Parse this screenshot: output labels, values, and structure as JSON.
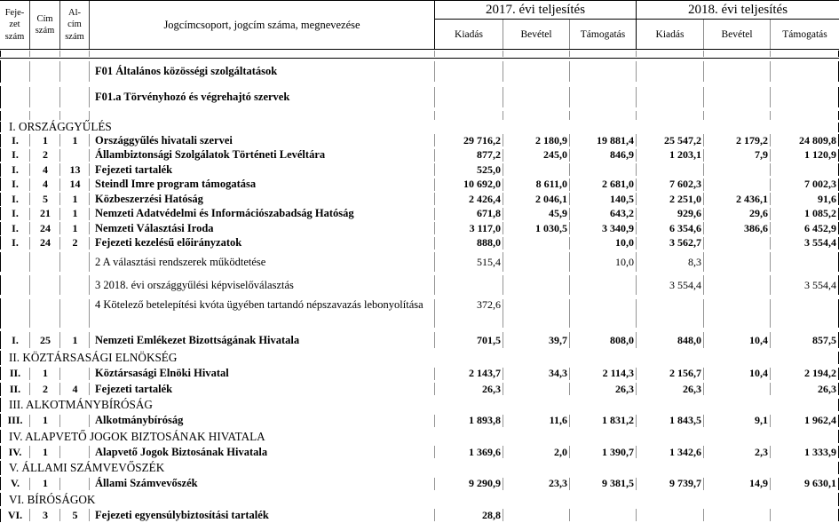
{
  "header": {
    "fejezet": "Feje-\nzet\nszám",
    "cim": "Cím\nszám",
    "alcim": "Al-\ncím\nszám",
    "megnevezes": "Jogcímcsoport, jogcím száma, megnevezése",
    "y2017": "2017. évi teljesítés",
    "y2018": "2018. évi teljesítés",
    "kiadas": "Kiadás",
    "bevetel": "Bevétel",
    "tamogatas": "Támogatás"
  },
  "rows": [
    {
      "type": "thin"
    },
    {
      "type": "func",
      "name": "F01 Általános közösségi szolgáltatások",
      "bold": true
    },
    {
      "type": "func",
      "name": "F01.a Törvényhozó és végrehajtó szervek",
      "bold": true
    },
    {
      "type": "spacer"
    },
    {
      "type": "section",
      "variant": "first",
      "name": "I. ORSZÁGGYŰLÉS"
    },
    {
      "type": "data",
      "variant": "first",
      "fejezet": "I.",
      "cim": "1",
      "alcim": "1",
      "name": "Országgyűlés hivatali szervei",
      "bold": true,
      "values": [
        "29 716,2",
        "2 180,9",
        "19 881,4",
        "25 547,2",
        "2 179,2",
        "24 809,8"
      ]
    },
    {
      "type": "data",
      "variant": "first",
      "fejezet": "I.",
      "cim": "2",
      "alcim": "",
      "name": "Állambiztonsági Szolgálatok Történeti Levéltára",
      "bold": true,
      "values": [
        "877,2",
        "245,0",
        "846,9",
        "1 203,1",
        "7,9",
        "1 120,9"
      ]
    },
    {
      "type": "data",
      "variant": "first",
      "fejezet": "I.",
      "cim": "4",
      "alcim": "13",
      "name": "Fejezeti tartalék",
      "bold": true,
      "values": [
        "525,0",
        "",
        "",
        "",
        "",
        ""
      ]
    },
    {
      "type": "data",
      "variant": "first",
      "fejezet": "I.",
      "cim": "4",
      "alcim": "14",
      "name": "Steindl Imre program támogatása",
      "bold": true,
      "values": [
        "10 692,0",
        "8 611,0",
        "2 681,0",
        "7 602,3",
        "",
        "7 002,3"
      ]
    },
    {
      "type": "data",
      "variant": "first",
      "fejezet": "I.",
      "cim": "5",
      "alcim": "1",
      "name": "Közbeszerzési Hatóság",
      "bold": true,
      "values": [
        "2 426,4",
        "2 046,1",
        "140,5",
        "2 251,0",
        "2 436,1",
        "91,6"
      ]
    },
    {
      "type": "data",
      "variant": "first",
      "fejezet": "I.",
      "cim": "21",
      "alcim": "1",
      "name": "Nemzeti Adatvédelmi és Információszabadság Hatóság",
      "bold": true,
      "values": [
        "671,8",
        "45,9",
        "643,2",
        "929,6",
        "29,6",
        "1 085,2"
      ]
    },
    {
      "type": "data",
      "variant": "first",
      "fejezet": "I.",
      "cim": "24",
      "alcim": "1",
      "name": "Nemzeti Választási Iroda",
      "bold": true,
      "values": [
        "3 117,0",
        "1 030,5",
        "3 340,9",
        "6 354,6",
        "386,6",
        "6 452,9"
      ]
    },
    {
      "type": "data",
      "variant": "first",
      "fejezet": "I.",
      "cim": "24",
      "alcim": "2",
      "name": "Fejezeti kezelésű előirányzatok",
      "bold": true,
      "values": [
        "888,0",
        "",
        "10,0",
        "3 562,7",
        "",
        "3 554,4"
      ]
    },
    {
      "type": "sub",
      "name": "2 A választási rendszerek működtetése",
      "values": [
        "515,4",
        "",
        "10,0",
        "8,3",
        "",
        ""
      ]
    },
    {
      "type": "sub",
      "name": "3 2018. évi országgyűlési képviselőválasztás",
      "values": [
        "",
        "",
        "",
        "3 554,4",
        "",
        "3 554,4"
      ]
    },
    {
      "type": "sub",
      "variant": "tall",
      "name": "4 Kötelező betelepítési kvóta ügyében tartandó népszavazás lebonyolítása",
      "values": [
        "372,6",
        "",
        "",
        "",
        "",
        ""
      ]
    },
    {
      "type": "data",
      "variant": "gap",
      "fejezet": "I.",
      "cim": "25",
      "alcim": "1",
      "name": "Nemzeti Emlékezet Bizottságának Hivatala",
      "bold": true,
      "values": [
        "701,5",
        "39,7",
        "808,0",
        "848,0",
        "10,4",
        "857,5"
      ]
    },
    {
      "type": "section",
      "name": "II. KÖZTÁRSASÁGI ELNÖKSÉG"
    },
    {
      "type": "data",
      "fejezet": "II.",
      "cim": "1",
      "alcim": "",
      "name": "Köztársasági Elnöki Hivatal",
      "bold": true,
      "values": [
        "2 143,7",
        "34,3",
        "2 114,3",
        "2 156,7",
        "10,4",
        "2 194,2"
      ]
    },
    {
      "type": "data",
      "fejezet": "II.",
      "cim": "2",
      "alcim": "4",
      "name": "Fejezeti tartalék",
      "bold": true,
      "values": [
        "26,3",
        "",
        "26,3",
        "26,3",
        "",
        "26,3"
      ]
    },
    {
      "type": "section",
      "name": "III. ALKOTMÁNYBÍRÓSÁG"
    },
    {
      "type": "data",
      "fejezet": "III.",
      "cim": "1",
      "alcim": "",
      "name": "Alkotmánybíróság",
      "bold": true,
      "values": [
        "1 893,8",
        "11,6",
        "1 831,2",
        "1 843,5",
        "9,1",
        "1 962,4"
      ]
    },
    {
      "type": "section",
      "name": "IV. ALAPVETŐ JOGOK BIZTOSÁNAK HIVATALA"
    },
    {
      "type": "data",
      "fejezet": "IV.",
      "cim": "1",
      "alcim": "",
      "name": "Alapvető Jogok Biztosának Hivatala",
      "bold": true,
      "values": [
        "1 369,6",
        "2,0",
        "1 390,7",
        "1 342,6",
        "2,3",
        "1 333,9"
      ]
    },
    {
      "type": "section",
      "name": "V. ÁLLAMI SZÁMVEVŐSZÉK"
    },
    {
      "type": "data",
      "fejezet": "V.",
      "cim": "1",
      "alcim": "",
      "name": "Állami Számvevőszék",
      "bold": true,
      "values": [
        "9 290,9",
        "23,3",
        "9 381,5",
        "9 739,7",
        "14,9",
        "9 630,1"
      ]
    },
    {
      "type": "section",
      "name": "VI. BÍRÓSÁGOK"
    },
    {
      "type": "data",
      "fejezet": "VI.",
      "cim": "3",
      "alcim": "5",
      "name": "Fejezeti egyensúlybiztosítási tartalék",
      "bold": true,
      "values": [
        "28,8",
        "",
        "",
        "",
        "",
        ""
      ]
    }
  ]
}
